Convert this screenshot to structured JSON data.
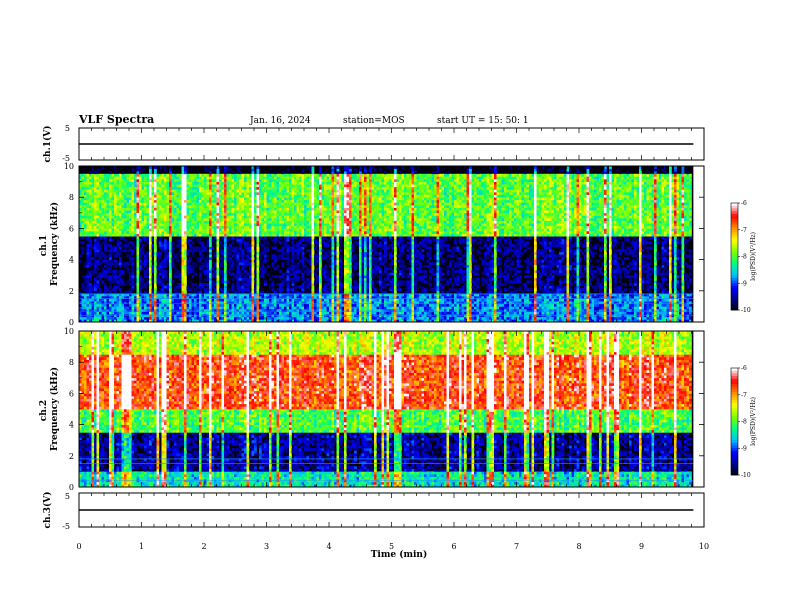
{
  "header": {
    "title": "VLF Spectra",
    "date": "Jan. 16, 2024",
    "station": "station=MOS",
    "start": "start  UT  =   15: 50: 1"
  },
  "colors": {
    "background": "#000010",
    "trace": "#000000",
    "colormap": [
      "#000000",
      "#00008b",
      "#0000ff",
      "#00bfff",
      "#00ff7f",
      "#7fff00",
      "#ffff00",
      "#ff8c00",
      "#ff0000",
      "#ffffff"
    ]
  },
  "chart_data": [
    {
      "type": "line",
      "panel": "ch1-waveform",
      "ylabel": "ch.1(V)",
      "ylim": [
        -5,
        5
      ],
      "yticks": [
        "5",
        "-5"
      ],
      "xlim": [
        0,
        10
      ],
      "series": [
        {
          "x": [
            0,
            9.83
          ],
          "y": [
            0,
            0
          ]
        }
      ]
    },
    {
      "type": "heatmap",
      "panel": "ch1-spectrogram",
      "ylabel": "ch.1\nFrequency (kHz)",
      "ylim": [
        0,
        10
      ],
      "yticks": [
        "0",
        "2",
        "4",
        "6",
        "8",
        "10"
      ],
      "xlim": [
        0,
        10
      ],
      "data_end_min": 9.83,
      "colorbar": {
        "label": "log(PSD)(V²/Hz)",
        "range": [
          -10,
          -6
        ],
        "ticks": [
          "-6",
          "-7",
          "-8",
          "-9",
          "-10"
        ]
      },
      "bands": [
        {
          "freq_khz": [
            0,
            1.8
          ],
          "level": -8.8
        },
        {
          "freq_khz": [
            1.8,
            5.5
          ],
          "level": -9.6
        },
        {
          "freq_khz": [
            5.5,
            9.5
          ],
          "level": -7.9
        },
        {
          "freq_khz": [
            9.5,
            10
          ],
          "level": -10
        }
      ],
      "constant_lines_khz": [
        0.4,
        0.7,
        1.2,
        1.5,
        1.8
      ]
    },
    {
      "type": "heatmap",
      "panel": "ch2-spectrogram",
      "ylabel": "ch.2\nFrequency (kHz)",
      "ylim": [
        0,
        10
      ],
      "yticks": [
        "0",
        "2",
        "4",
        "6",
        "8",
        "10"
      ],
      "xlim": [
        0,
        10
      ],
      "data_end_min": 9.83,
      "colorbar": {
        "label": "log(PSD)(V²/Hz)",
        "range": [
          -10,
          -6
        ],
        "ticks": [
          "-6",
          "-7",
          "-8",
          "-9",
          "-10"
        ]
      },
      "bands": [
        {
          "freq_khz": [
            0,
            1.0
          ],
          "level": -8.4
        },
        {
          "freq_khz": [
            1.0,
            3.5
          ],
          "level": -9.5
        },
        {
          "freq_khz": [
            3.5,
            5.0
          ],
          "level": -8.0
        },
        {
          "freq_khz": [
            5.0,
            8.5
          ],
          "level": -6.6
        },
        {
          "freq_khz": [
            8.5,
            10
          ],
          "level": -7.6
        }
      ],
      "constant_lines_khz": [
        0.4,
        1.5,
        1.8
      ]
    },
    {
      "type": "line",
      "panel": "ch3-waveform",
      "ylabel": "ch.3(V)",
      "ylim": [
        -5,
        5
      ],
      "yticks": [
        "5",
        "-5"
      ],
      "xlim": [
        0,
        10
      ],
      "series": [
        {
          "x": [
            0,
            9.83
          ],
          "y": [
            0,
            0
          ]
        }
      ]
    }
  ],
  "xaxis": {
    "label": "Time  (min)",
    "ticks": [
      "0",
      "1",
      "2",
      "3",
      "4",
      "5",
      "6",
      "7",
      "8",
      "9",
      "10"
    ]
  }
}
